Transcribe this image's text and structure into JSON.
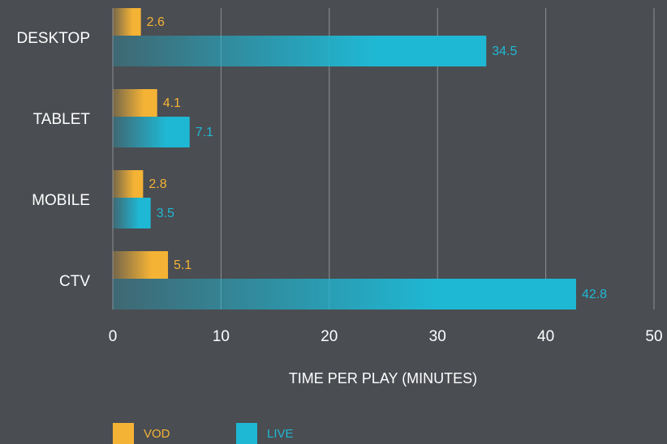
{
  "chart_data": {
    "type": "bar",
    "orientation": "horizontal",
    "x_label": "TIME PER PLAY (MINUTES)",
    "categories": [
      "DESKTOP",
      "TABLET",
      "MOBILE",
      "CTV"
    ],
    "series": [
      {
        "name": "VOD",
        "color": "#f5b335",
        "values": [
          2.6,
          4.1,
          2.8,
          5.1
        ]
      },
      {
        "name": "LIVE",
        "color": "#1fb8d4",
        "values": [
          34.5,
          7.1,
          3.5,
          42.8
        ]
      }
    ],
    "xlim": [
      0,
      50
    ],
    "xticks": [
      0,
      10,
      20,
      30,
      40,
      50
    ],
    "grid": true,
    "legend": "bottom-left"
  }
}
